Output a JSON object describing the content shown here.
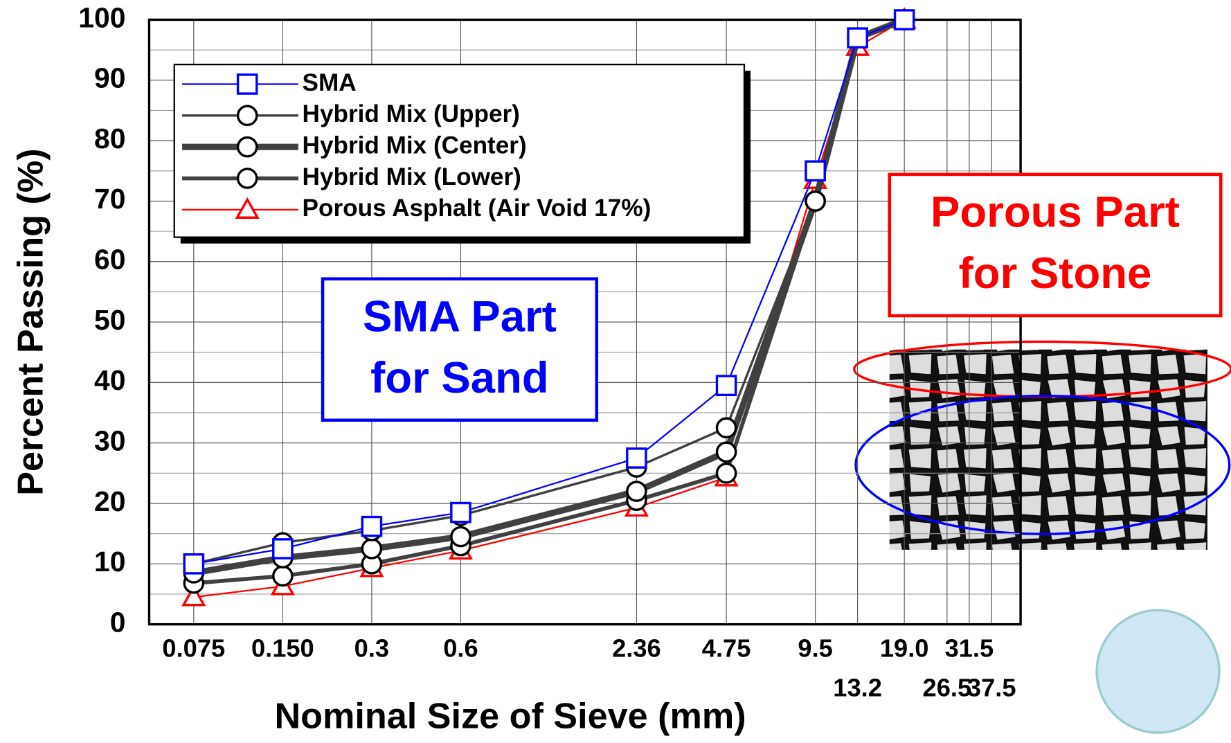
{
  "chart_data": {
    "type": "line",
    "x_log": true,
    "y_label": "Percent Passing (%)",
    "x_label": "Nominal Size of Sieve (mm)",
    "x": [
      0.075,
      0.15,
      0.3,
      0.6,
      2.36,
      4.75,
      9.5,
      13.2,
      19.0
    ],
    "series": [
      {
        "name": "SMA",
        "color": "#0000ff",
        "marker": "square",
        "line_width": 2,
        "values": [
          10,
          12.5,
          16.2,
          18.5,
          27.5,
          39.5,
          75,
          97,
          100
        ]
      },
      {
        "name": "Hybrid Mix (Upper)",
        "color": "#404040",
        "marker": "circle",
        "line_width": 3,
        "values": [
          10,
          13.5,
          15.5,
          18,
          26,
          32.5,
          70,
          97,
          100
        ]
      },
      {
        "name": "Hybrid Mix (Center)",
        "color": "#404040",
        "marker": "circle",
        "line_width": 8,
        "values": [
          8.5,
          11,
          12.5,
          14.5,
          22,
          28.5,
          70,
          97,
          100
        ]
      },
      {
        "name": "Hybrid Mix (Lower)",
        "color": "#404040",
        "marker": "circle",
        "line_width": 5,
        "values": [
          6.8,
          8,
          10,
          13,
          20.5,
          25,
          70,
          97,
          100
        ]
      },
      {
        "name": "Porous Asphalt (Air Void 17%)",
        "color": "#ff0000",
        "marker": "triangle",
        "line_width": 2,
        "values": [
          4.5,
          6.3,
          9.3,
          12.2,
          19.3,
          24.3,
          73.5,
          95.5,
          100
        ]
      }
    ],
    "xlim": [
      0.053,
      47
    ],
    "xticks": [
      0.075,
      {
        "value": 0.15,
        "label": "0.150"
      },
      0.3,
      0.6,
      2.36,
      4.75,
      9.5,
      13.2,
      {
        "value": 19.0,
        "label": "19.0"
      },
      26.5,
      31.5,
      37.5
    ],
    "ylim": [
      0,
      100
    ],
    "yticks": [
      0,
      10,
      20,
      30,
      40,
      50,
      60,
      70,
      80,
      90,
      100
    ],
    "grid": true,
    "annotations": [
      {
        "lines": [
          "SMA Part",
          "for Sand"
        ],
        "color": "#0000ff"
      },
      {
        "lines": [
          "Porous Part",
          "for Stone"
        ],
        "color": "#ff0000"
      }
    ]
  }
}
